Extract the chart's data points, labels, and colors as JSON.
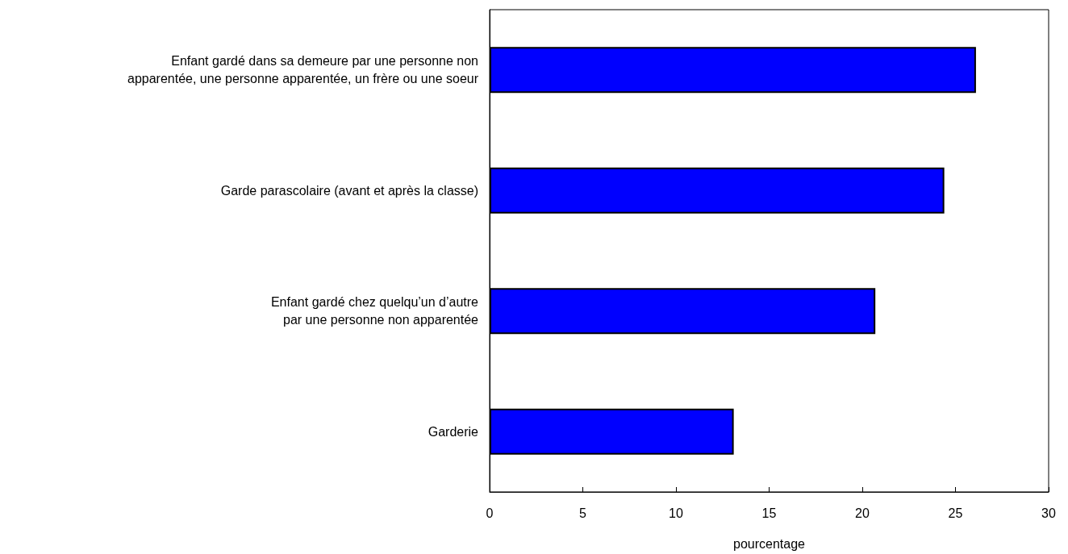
{
  "chart_data": {
    "type": "bar",
    "orientation": "horizontal",
    "xlabel": "pourcentage",
    "categories": [
      "Enfant gardé dans sa demeure par une personne non\napparentée, une personne apparentée, un frère ou une soeur",
      "Garde parascolaire (avant et après la classe)",
      "Enfant gardé chez quelqu’un d’autre\npar une personne non apparentée",
      "Garderie"
    ],
    "values": [
      26.1,
      24.4,
      20.7,
      13.1
    ],
    "color": "#0000ff",
    "xlim": [
      0,
      30
    ],
    "xticks": [
      0,
      5,
      10,
      15,
      20,
      25,
      30
    ],
    "grid": false
  }
}
